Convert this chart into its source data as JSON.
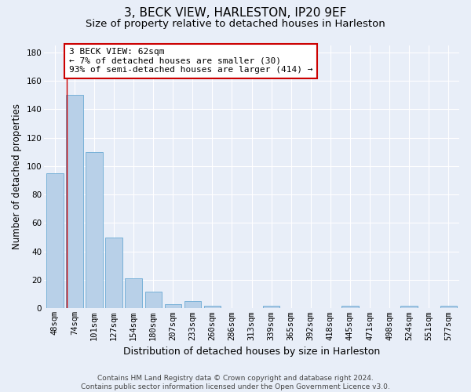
{
  "title": "3, BECK VIEW, HARLESTON, IP20 9EF",
  "subtitle": "Size of property relative to detached houses in Harleston",
  "xlabel": "Distribution of detached houses by size in Harleston",
  "ylabel": "Number of detached properties",
  "categories": [
    "48sqm",
    "74sqm",
    "101sqm",
    "127sqm",
    "154sqm",
    "180sqm",
    "207sqm",
    "233sqm",
    "260sqm",
    "286sqm",
    "313sqm",
    "339sqm",
    "365sqm",
    "392sqm",
    "418sqm",
    "445sqm",
    "471sqm",
    "498sqm",
    "524sqm",
    "551sqm",
    "577sqm"
  ],
  "values": [
    95,
    150,
    110,
    50,
    21,
    12,
    3,
    5,
    2,
    0,
    0,
    2,
    0,
    0,
    0,
    2,
    0,
    0,
    2,
    0,
    2
  ],
  "bar_color": "#b8d0e8",
  "bar_edge_color": "#6aaad4",
  "background_color": "#e8eef8",
  "grid_color": "#ffffff",
  "red_line_x": 0.62,
  "annotation_text": "3 BECK VIEW: 62sqm\n← 7% of detached houses are smaller (30)\n93% of semi-detached houses are larger (414) →",
  "annotation_box_color": "#ffffff",
  "annotation_box_edge": "#cc0000",
  "property_line_color": "#cc0000",
  "ylim": [
    0,
    185
  ],
  "yticks": [
    0,
    20,
    40,
    60,
    80,
    100,
    120,
    140,
    160,
    180
  ],
  "footnote": "Contains HM Land Registry data © Crown copyright and database right 2024.\nContains public sector information licensed under the Open Government Licence v3.0.",
  "title_fontsize": 11,
  "subtitle_fontsize": 9.5,
  "xlabel_fontsize": 9,
  "ylabel_fontsize": 8.5,
  "tick_fontsize": 7.5,
  "annotation_fontsize": 8,
  "footnote_fontsize": 6.5
}
